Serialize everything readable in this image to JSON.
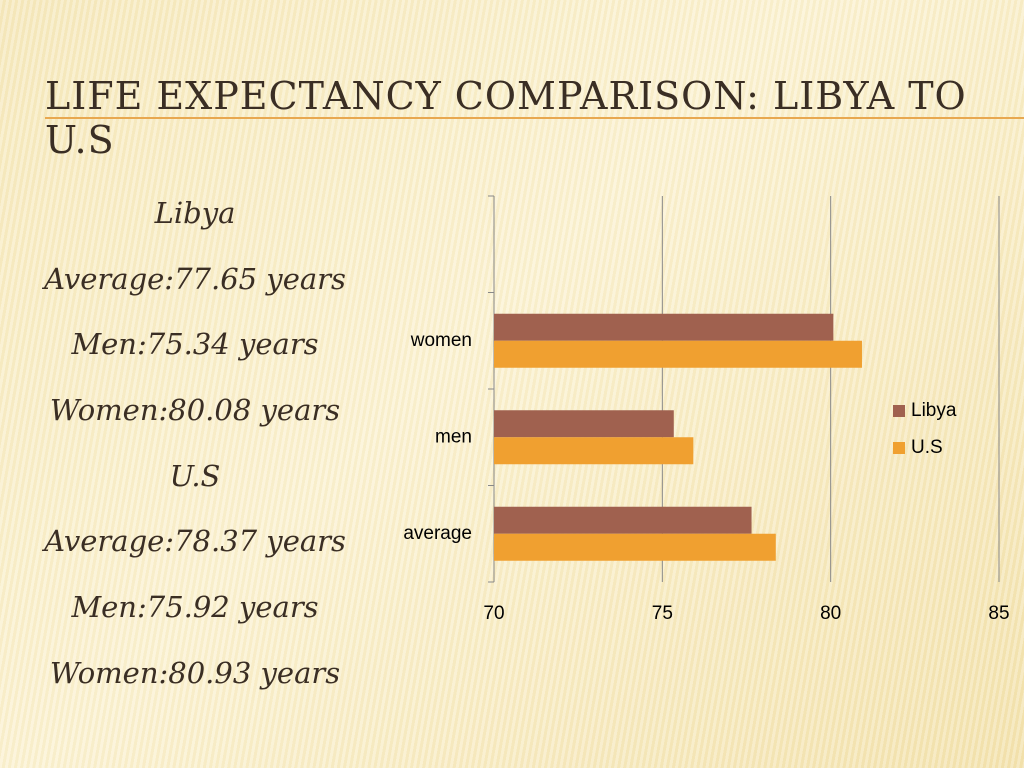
{
  "title": "LIFE EXPECTANCY COMPARISON: LIBYA TO U.S",
  "text_lines": [
    "Libya",
    "Average:77.65 years",
    "Men:75.34 years",
    "Women:80.08 years",
    "U.S",
    "Average:78.37 years",
    "Men:75.92 years",
    "Women:80.93 years"
  ],
  "chart_data": {
    "type": "hbar",
    "categories": [
      "average",
      "men",
      "women",
      null
    ],
    "series": [
      {
        "name": "Libya",
        "color": "#a0614f",
        "values": [
          77.65,
          75.34,
          80.08,
          null
        ]
      },
      {
        "name": "U.S",
        "color": "#f0a030",
        "values": [
          78.37,
          75.92,
          80.93,
          null
        ]
      }
    ],
    "xlim": [
      70,
      85
    ],
    "xticks": [
      70,
      75,
      80,
      85
    ],
    "grid": true,
    "legend": "right"
  }
}
